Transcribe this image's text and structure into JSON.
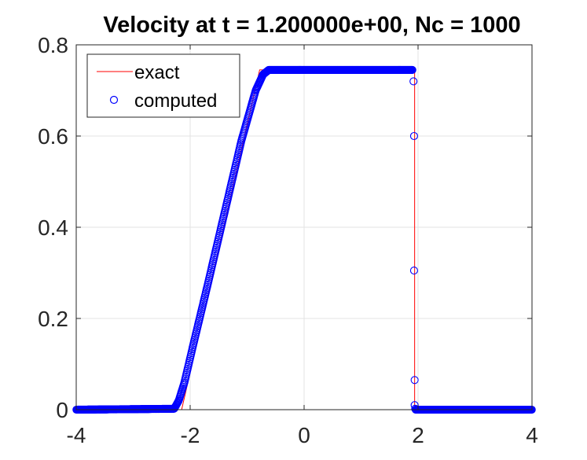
{
  "chart_data": {
    "type": "line",
    "title": "Velocity at t = 1.200000e+00, Nc = 1000",
    "xlabel": "",
    "ylabel": "",
    "xlim": [
      -4,
      4
    ],
    "ylim": [
      0,
      0.8
    ],
    "xticks": [
      -4,
      -2,
      0,
      2,
      4
    ],
    "xtick_labels": [
      "-4",
      "-2",
      "0",
      "2",
      "4"
    ],
    "yticks": [
      0,
      0.2,
      0.4,
      0.6,
      0.8
    ],
    "ytick_labels": [
      "0",
      "0.2",
      "0.4",
      "0.6",
      "0.8"
    ],
    "grid": true,
    "legend_position": "top-left",
    "series": [
      {
        "name": "exact",
        "style": "line",
        "color": "#ff0000",
        "x": [
          -4,
          -2.15,
          -0.78,
          1.94,
          1.94,
          4
        ],
        "y": [
          0,
          0,
          0.745,
          0.745,
          0,
          0
        ]
      },
      {
        "name": "computed",
        "style": "markers",
        "marker": "circle",
        "color": "#0000ff",
        "x": [
          -4,
          -2.28,
          -2.2,
          -2.1,
          -1.95,
          -1.7,
          -1.4,
          -1.1,
          -0.85,
          -0.72,
          -0.62,
          -0.5,
          0.5,
          1.9,
          1.92,
          1.93,
          1.93,
          1.94,
          1.94,
          1.95,
          1.96,
          2.5,
          3.2,
          4
        ],
        "y": [
          0,
          0.002,
          0.02,
          0.06,
          0.14,
          0.27,
          0.43,
          0.59,
          0.7,
          0.735,
          0.745,
          0.745,
          0.745,
          0.745,
          0.72,
          0.6,
          0.305,
          0.065,
          0.01,
          0.002,
          0,
          0,
          0,
          0
        ],
        "dense": true
      }
    ]
  }
}
